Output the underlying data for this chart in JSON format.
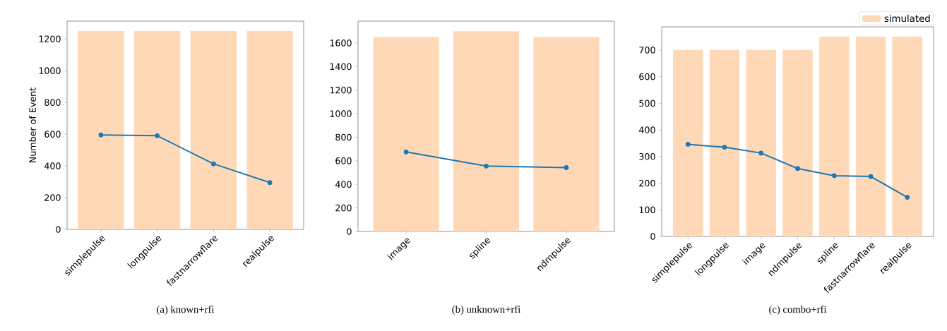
{
  "chart_data": [
    {
      "type": "bar",
      "title": "(a) known+rfi",
      "ylabel": "Number of Event",
      "categories": [
        "simplepulse",
        "longpulse",
        "fastnarrowflare",
        "realpulse"
      ],
      "series": [
        {
          "type": "line",
          "color": "#1f77b4",
          "marker": "circle",
          "values": [
            595,
            590,
            413,
            295
          ]
        },
        {
          "type": "bar",
          "color": "#ffd9b7",
          "values": [
            1250,
            1250,
            1250,
            1250
          ]
        }
      ],
      "ylim": [
        0,
        1312
      ],
      "yticks": [
        0,
        200,
        400,
        600,
        800,
        1000,
        1200
      ]
    },
    {
      "type": "bar",
      "title": "(b) unknown+rfi",
      "categories": [
        "image",
        "spline",
        "ndmpulse"
      ],
      "series": [
        {
          "type": "line",
          "color": "#1f77b4",
          "marker": "circle",
          "values": [
            675,
            555,
            542
          ]
        },
        {
          "type": "bar",
          "color": "#ffd9b7",
          "values": [
            1650,
            1700,
            1650
          ]
        }
      ],
      "ylim": [
        0,
        1785
      ],
      "yticks": [
        0,
        200,
        400,
        600,
        800,
        1000,
        1200,
        1400,
        1600
      ]
    },
    {
      "type": "bar",
      "title": "(c) combo+rfi",
      "categories": [
        "simplepulse",
        "longpulse",
        "image",
        "ndmpulse",
        "spline",
        "fastnarrowflare",
        "realpulse"
      ],
      "series": [
        {
          "type": "line",
          "color": "#1f77b4",
          "marker": "circle",
          "values": [
            346,
            335,
            313,
            255,
            228,
            225,
            147
          ]
        },
        {
          "name": "simulated",
          "type": "bar",
          "color": "#ffd9b7",
          "values": [
            700,
            700,
            700,
            700,
            750,
            750,
            750
          ]
        }
      ],
      "ylim": [
        0,
        787
      ],
      "yticks": [
        0,
        100,
        200,
        300,
        400,
        500,
        600,
        700
      ],
      "legend": "top right"
    }
  ]
}
